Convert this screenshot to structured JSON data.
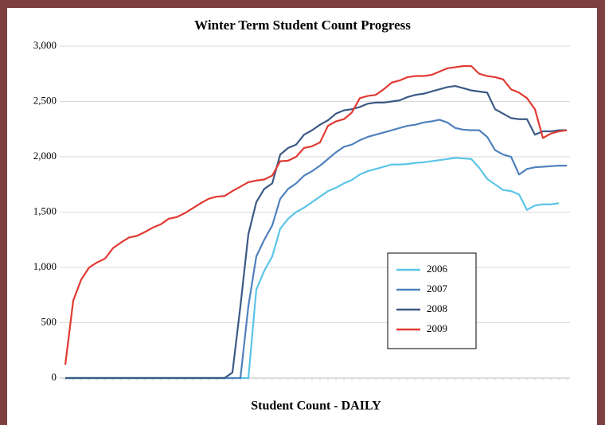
{
  "chart_data": {
    "type": "line",
    "title": "Winter Term Student Count Progress",
    "xlabel": "Student Count - DAILY",
    "categories": [
      null,
      null,
      null,
      null,
      null,
      null,
      null,
      null,
      null,
      null,
      null,
      null,
      null,
      null,
      null,
      null,
      null,
      null,
      null,
      null,
      null,
      null,
      null,
      null,
      null,
      null,
      null,
      null,
      null,
      null,
      null,
      null,
      null,
      null,
      null,
      null,
      null,
      null,
      null,
      null,
      null,
      null,
      null,
      null,
      null,
      null,
      null,
      null,
      null,
      null,
      null,
      null,
      null,
      null,
      null,
      null,
      null,
      null,
      null,
      null,
      null,
      null,
      null,
      null
    ],
    "series": [
      {
        "name": "2006",
        "color": "#5bc5e6",
        "values": [
          0,
          0,
          0,
          0,
          0,
          0,
          0,
          0,
          0,
          0,
          0,
          0,
          0,
          0,
          0,
          0,
          0,
          0,
          0,
          0,
          0,
          0,
          0,
          0,
          800,
          970,
          1100,
          1350,
          1440,
          1500,
          1540,
          1590,
          1640,
          1690,
          1720,
          1760,
          1790,
          1840,
          1870,
          1890,
          1910,
          1930,
          1930,
          1935,
          1945,
          1950,
          1960,
          1970,
          1980,
          1990,
          1985,
          1980,
          1900,
          1800,
          1750,
          1700,
          1690,
          1660,
          1520,
          1560,
          1570,
          1570,
          1580,
          null
        ]
      },
      {
        "name": "2007",
        "color": "#4f81bd",
        "values": [
          0,
          0,
          0,
          0,
          0,
          0,
          0,
          0,
          0,
          0,
          0,
          0,
          0,
          0,
          0,
          0,
          0,
          0,
          0,
          0,
          0,
          0,
          0,
          650,
          1100,
          1250,
          1380,
          1620,
          1710,
          1760,
          1830,
          1870,
          1920,
          1980,
          2040,
          2090,
          2110,
          2150,
          2180,
          2200,
          2220,
          2240,
          2260,
          2280,
          2290,
          2310,
          2320,
          2335,
          2310,
          2260,
          2245,
          2240,
          2240,
          2180,
          2060,
          2020,
          2000,
          1840,
          1890,
          1905,
          1910,
          1915,
          1920,
          1920
        ]
      },
      {
        "name": "2008",
        "color": "#3d5a85",
        "values": [
          0,
          0,
          0,
          0,
          0,
          0,
          0,
          0,
          0,
          0,
          0,
          0,
          0,
          0,
          0,
          0,
          0,
          0,
          0,
          0,
          0,
          50,
          650,
          1300,
          1590,
          1710,
          1760,
          2020,
          2080,
          2110,
          2200,
          2240,
          2290,
          2330,
          2390,
          2420,
          2430,
          2450,
          2480,
          2490,
          2490,
          2500,
          2510,
          2540,
          2560,
          2570,
          2590,
          2610,
          2630,
          2640,
          2620,
          2600,
          2590,
          2580,
          2430,
          2390,
          2350,
          2340,
          2340,
          2200,
          2230,
          2230,
          2240,
          2240
        ]
      },
      {
        "name": "2009",
        "color": "#e03a33",
        "values": [
          120,
          700,
          890,
          1000,
          1045,
          1080,
          1175,
          1225,
          1270,
          1285,
          1320,
          1360,
          1390,
          1440,
          1455,
          1490,
          1535,
          1580,
          1620,
          1640,
          1645,
          1690,
          1730,
          1770,
          1785,
          1795,
          1830,
          1960,
          1965,
          2000,
          2080,
          2095,
          2130,
          2280,
          2320,
          2340,
          2400,
          2530,
          2550,
          2560,
          2610,
          2670,
          2690,
          2720,
          2730,
          2730,
          2740,
          2770,
          2800,
          2810,
          2820,
          2820,
          2750,
          2730,
          2720,
          2700,
          2610,
          2580,
          2530,
          2430,
          2170,
          2210,
          2230,
          2240
        ]
      }
    ],
    "ylim": [
      0,
      3000
    ],
    "yticks": [
      0,
      500,
      {
        "value": 1000,
        "label": "1,000"
      },
      {
        "value": 1500,
        "label": "1,500"
      },
      {
        "value": 2000,
        "label": "2,000"
      },
      {
        "value": 2500,
        "label": "2,500"
      },
      {
        "value": 3000,
        "label": "3,000"
      }
    ],
    "grid": true
  }
}
